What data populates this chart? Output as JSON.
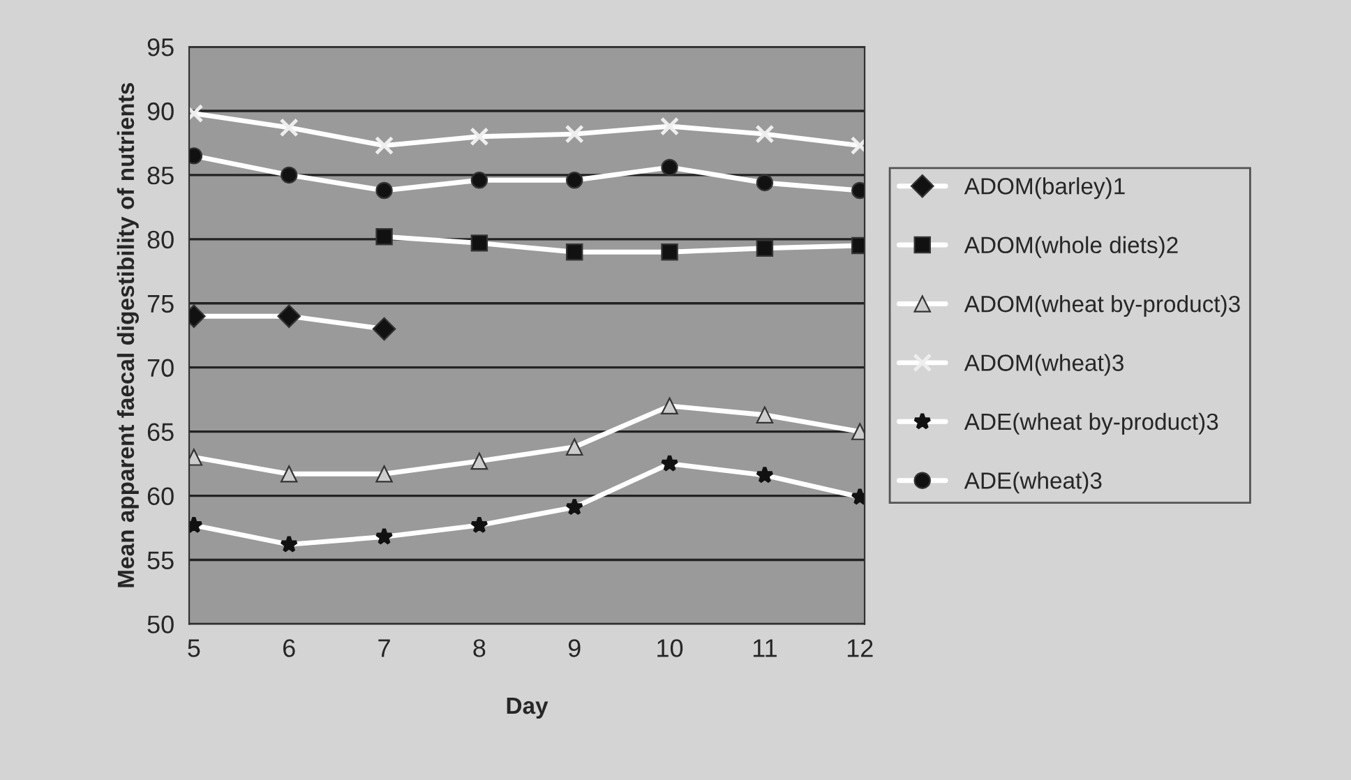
{
  "chart_data": {
    "type": "line",
    "xlabel": "Day",
    "ylabel": "Mean apparent faecal digestibility of nutrients",
    "categories": [
      "5",
      "6",
      "7",
      "8",
      "9",
      "10",
      "11",
      "12"
    ],
    "ylim": [
      50,
      95
    ],
    "yticks": [
      50,
      55,
      60,
      65,
      70,
      75,
      80,
      85,
      90,
      95
    ],
    "grid": "y",
    "legend": "right",
    "series": [
      {
        "name": "ADOM(barley)1",
        "color": "#111111",
        "marker": "diamond",
        "values": [
          74,
          74,
          73,
          null,
          null,
          null,
          null,
          null
        ]
      },
      {
        "name": "ADOM(whole diets)2",
        "color": "#111111",
        "marker": "square",
        "values": [
          null,
          null,
          80.2,
          79.7,
          79,
          79,
          79.3,
          79.5
        ]
      },
      {
        "name": "ADOM(wheat by-product)3",
        "color": "#cccccc",
        "marker": "triangle",
        "values": [
          63,
          61.7,
          61.7,
          62.7,
          63.8,
          67,
          66.3,
          65
        ]
      },
      {
        "name": "ADOM(wheat)3",
        "color": "#eeeeee",
        "marker": "cross",
        "values": [
          89.8,
          88.7,
          87.3,
          88,
          88.2,
          88.8,
          88.2,
          87.3
        ]
      },
      {
        "name": "ADE(wheat by-product)3",
        "color": "#111111",
        "marker": "star",
        "values": [
          57.7,
          56.2,
          56.8,
          57.7,
          59.1,
          62.5,
          61.6,
          59.9
        ]
      },
      {
        "name": "ADE(wheat)3",
        "color": "#111111",
        "marker": "circle",
        "values": [
          86.5,
          85,
          83.8,
          84.6,
          84.6,
          85.6,
          84.4,
          83.8
        ]
      }
    ]
  }
}
